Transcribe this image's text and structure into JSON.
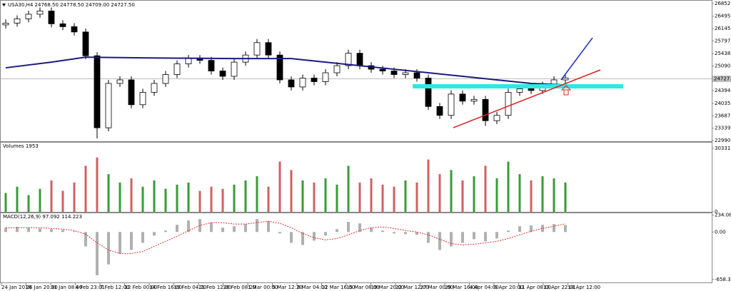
{
  "chart_data": {
    "type": "candlestick",
    "title": "USA30,H4 24768.50 24778.50 24709.00 24727.50",
    "up_color": "#ffffff",
    "down_color": "#000000",
    "open": [
      26250,
      26300,
      26420,
      26550,
      26640,
      26280,
      26200,
      26050,
      25380,
      23350,
      24600,
      24700,
      24000,
      24350,
      24600,
      24850,
      25150,
      25300,
      25250,
      24950,
      24800,
      25200,
      25400,
      25750,
      25400,
      24700,
      24500,
      24750,
      24650,
      24900,
      25100,
      25450,
      25100,
      25000,
      24950,
      24850,
      24900,
      24750,
      23950,
      23700,
      24300,
      24100,
      24150,
      23550,
      23700,
      24350,
      24450,
      24400,
      24550,
      24700
    ],
    "high": [
      26400,
      26520,
      26650,
      26740,
      26740,
      26380,
      26300,
      26150,
      25480,
      24700,
      24800,
      24800,
      24450,
      24700,
      24950,
      25250,
      25400,
      25400,
      25350,
      25050,
      25300,
      25500,
      25850,
      25850,
      25500,
      24800,
      24850,
      24850,
      25000,
      25200,
      25550,
      25550,
      25200,
      25100,
      25050,
      25000,
      25000,
      24850,
      24050,
      24400,
      24400,
      24250,
      24250,
      23800,
      24450,
      24550,
      24550,
      24650,
      24800,
      24850
    ],
    "low": [
      26150,
      26200,
      26320,
      26450,
      26180,
      26100,
      25950,
      25280,
      23050,
      23250,
      24500,
      23900,
      23900,
      24250,
      24500,
      24750,
      25050,
      25150,
      24850,
      24700,
      24700,
      25100,
      25300,
      25300,
      24600,
      24400,
      24400,
      24550,
      24550,
      24800,
      25000,
      25000,
      24900,
      24850,
      24750,
      24750,
      24650,
      23850,
      23600,
      23600,
      24000,
      24000,
      23400,
      23450,
      23600,
      24250,
      24300,
      24300,
      24450,
      24600
    ],
    "close": [
      26300,
      26420,
      26550,
      26640,
      26280,
      26200,
      26050,
      25380,
      23350,
      24600,
      24700,
      24000,
      24350,
      24600,
      24850,
      25150,
      25300,
      25250,
      24950,
      24800,
      25200,
      25400,
      25750,
      25400,
      24700,
      24500,
      24750,
      24650,
      24900,
      25100,
      25450,
      25100,
      25000,
      24950,
      24850,
      24900,
      24750,
      23950,
      23700,
      24300,
      24100,
      24150,
      23550,
      23700,
      24350,
      24450,
      24400,
      24550,
      24700,
      24750
    ],
    "moving_average": {
      "color": "#1a1a80",
      "x": [
        0,
        4,
        7,
        12,
        20,
        25,
        28,
        31,
        34,
        37,
        40,
        43,
        46,
        49
      ],
      "values": [
        25040,
        25200,
        25340,
        25320,
        25300,
        25300,
        25200,
        25100,
        25000,
        24900,
        24800,
        24700,
        24600,
        24560
      ]
    },
    "ylim": [
      22971,
      26951
    ],
    "yticks": [
      26852.15,
      {
        "value": 26495,
        "label": "26495.00"
      },
      {
        "value": 26145.3,
        "label": "26145.30"
      },
      {
        "value": 25797,
        "label": "25797.00"
      },
      25438.45,
      {
        "value": 25090,
        "label": "25090.00"
      },
      {
        "value": 24394,
        "label": "24394.00"
      },
      {
        "value": 24035.3,
        "label": "24035.30"
      },
      23687.15,
      {
        "value": 23339,
        "label": "23339.00"
      },
      {
        "value": 22990.8,
        "label": "22990.80"
      }
    ],
    "last_price": {
      "value": 24727.5,
      "label": "24727.50"
    },
    "xtick_labels": [
      "24 Jan 2018",
      "26 Jan 20:00",
      "31 Jan 08:00",
      "4 Feb 23:01",
      "7 Feb 12:00",
      "12 Feb 00:00",
      "14 Feb 16:00",
      "19 Feb 04:20",
      "21 Feb 12:00",
      "26 Feb 08:20",
      "1 Mar 00:00",
      "5 Mar 12:20",
      "8 Mar 04:00",
      "12 Mar 16:00",
      "15 Mar 08:00",
      "19 Mar 20:00",
      "22 Mar 12:00",
      "27 Mar 00:00",
      "29 Mar 16:00",
      "4 Apr 04:00",
      "6 Apr 20:00",
      "11 Apr 08:00",
      "13 Apr 22:01",
      "18 Apr 12:00"
    ],
    "volume": {
      "title": "Volumes 1953",
      "up_color": "#3a9a3a",
      "down_color": "#d06060",
      "values": [
        9000,
        12000,
        8000,
        11000,
        15000,
        10000,
        14000,
        22000,
        26000,
        18000,
        14000,
        16000,
        12000,
        15000,
        11000,
        13000,
        14000,
        10000,
        12000,
        11000,
        13000,
        15000,
        17000,
        12000,
        24000,
        20000,
        15000,
        14000,
        16000,
        13000,
        22000,
        14000,
        16000,
        13000,
        12000,
        15000,
        14000,
        25000,
        18000,
        20000,
        15000,
        17000,
        22000,
        16000,
        24000,
        18000,
        15000,
        17000,
        16000,
        14000
      ],
      "ylim": [
        0,
        30331
      ],
      "yticks": [
        30331,
        0
      ]
    },
    "macd": {
      "title": "MACD(12,26,9) 97.092 114.223",
      "histogram_color": "#b0b0b0",
      "signal_color": "#e03030",
      "histogram": [
        60,
        70,
        60,
        50,
        40,
        30,
        10,
        -200,
        -600,
        -450,
        -300,
        -250,
        -150,
        -50,
        20,
        100,
        160,
        180,
        130,
        60,
        80,
        110,
        180,
        150,
        -20,
        -150,
        -180,
        -120,
        -50,
        40,
        140,
        120,
        60,
        20,
        -20,
        -30,
        -40,
        -150,
        -250,
        -200,
        -150,
        -100,
        -130,
        -90,
        20,
        80,
        90,
        100,
        110,
        97.092
      ],
      "signal": [
        60,
        60,
        60,
        60,
        50,
        40,
        20,
        -30,
        -150,
        -250,
        -300,
        -300,
        -270,
        -200,
        -130,
        -60,
        20,
        90,
        130,
        130,
        110,
        110,
        130,
        150,
        120,
        60,
        -20,
        -80,
        -110,
        -90,
        -40,
        20,
        60,
        70,
        50,
        20,
        0,
        -40,
        -100,
        -160,
        -180,
        -170,
        -150,
        -130,
        -90,
        -40,
        10,
        50,
        80,
        114.223
      ],
      "ylim": [
        -700,
        260
      ],
      "yticks": [
        234.088,
        {
          "value": 0,
          "label": "0.00"
        },
        -658.322
      ]
    }
  }
}
